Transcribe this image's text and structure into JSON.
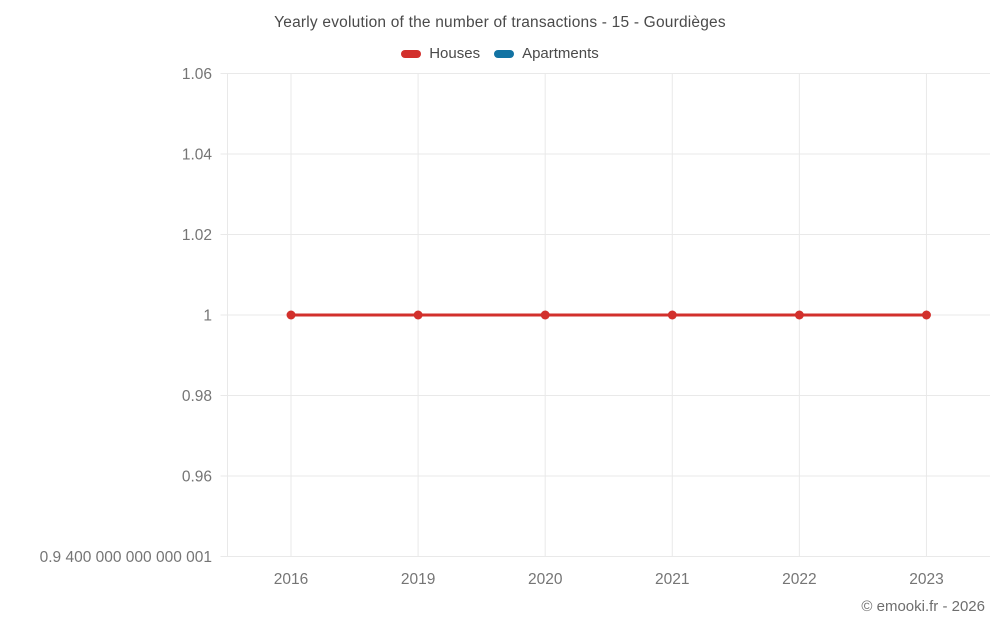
{
  "header": {
    "title": "Yearly evolution of the number of transactions - 15 - Gourdièges",
    "legend": [
      {
        "label": "Houses",
        "color": "#d2302c"
      },
      {
        "label": "Apartments",
        "color": "#1273a3"
      }
    ]
  },
  "footer": {
    "credit": "© emooki.fr - 2026"
  },
  "colors": {
    "grid": "#e9e9e9",
    "tick_text": "#757575",
    "houses": "#d2302c",
    "apartments": "#1273a3"
  },
  "chart_data": {
    "type": "line",
    "title": "Yearly evolution of the number of transactions - 15 - Gourdièges",
    "categories": [
      "2016",
      "2019",
      "2020",
      "2021",
      "2022",
      "2023"
    ],
    "series": [
      {
        "name": "Houses",
        "color": "#d2302c",
        "values": [
          1,
          1,
          1,
          1,
          1,
          1
        ]
      },
      {
        "name": "Apartments",
        "color": "#1273a3",
        "values": []
      }
    ],
    "xlabel": "",
    "ylabel": "",
    "ylim": [
      0.94,
      1.06
    ],
    "ytick_labels": [
      "1.06",
      "1.04",
      "1.02",
      "1",
      "0.98",
      "0.96",
      "0.9 400 000 000 000 001"
    ],
    "ytick_values": [
      1.06,
      1.04,
      1.02,
      1,
      0.98,
      0.96,
      0.9400000000000001
    ],
    "grid": true,
    "legend_position": "top",
    "marker": "circle"
  }
}
